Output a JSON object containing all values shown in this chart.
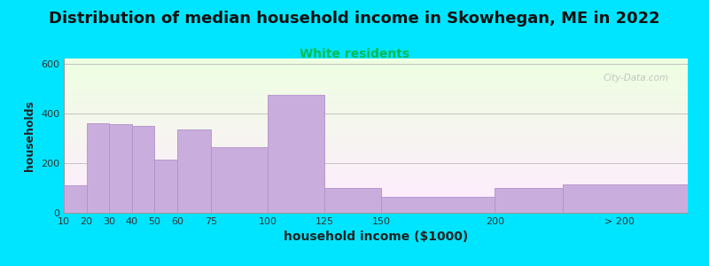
{
  "title": "Distribution of median household income in Skowhegan, ME in 2022",
  "subtitle": "White residents",
  "xlabel": "household income ($1000)",
  "ylabel": "households",
  "title_fontsize": 13,
  "subtitle_fontsize": 10,
  "subtitle_color": "#00bb55",
  "background_outer": "#00e5ff",
  "bar_color": "#c9aedd",
  "bar_edge_color": "#b090cc",
  "ylim": [
    0,
    620
  ],
  "yticks": [
    0,
    200,
    400,
    600
  ],
  "xtick_labels": [
    "10",
    "20",
    "30",
    "40",
    "50",
    "60",
    "75",
    "100",
    "125",
    "150",
    "200",
    "> 200"
  ],
  "values": [
    110,
    360,
    355,
    350,
    215,
    335,
    265,
    475,
    100,
    65,
    100,
    115
  ],
  "watermark": "City-Data.com"
}
